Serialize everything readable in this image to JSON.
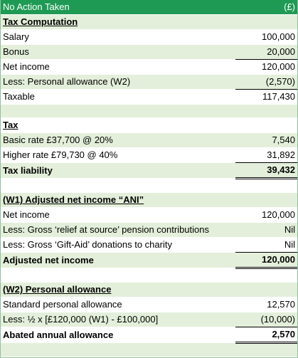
{
  "header": {
    "title": "No Action Taken",
    "unit": "(£)"
  },
  "tax_computation": {
    "heading": "Tax Computation",
    "rows": [
      {
        "label": "Salary",
        "value": "100,000"
      },
      {
        "label": "Bonus",
        "value": "20,000"
      },
      {
        "label": "Net income",
        "value": "120,000"
      },
      {
        "label": "Less: Personal allowance (W2)",
        "value": "(2,570)"
      },
      {
        "label": "Taxable",
        "value": "117,430"
      }
    ]
  },
  "tax": {
    "heading": "Tax",
    "rows": [
      {
        "label": "Basic rate £37,700 @ 20%",
        "value": "7,540"
      },
      {
        "label": "Higher rate £79,730 @ 40%",
        "value": "31,892"
      }
    ],
    "total": {
      "label": "Tax liability",
      "value": "39,432"
    }
  },
  "w1": {
    "heading": "(W1) Adjusted net income “ANI”",
    "rows": [
      {
        "label": "Net income",
        "value": "120,000"
      },
      {
        "label": "Less: Gross ‘relief at source’ pension contributions",
        "value": "Nil"
      },
      {
        "label": "Less: Gross ‘Gift-Aid’ donations to charity",
        "value": "Nil"
      }
    ],
    "total": {
      "label": "Adjusted net income",
      "value": "120,000"
    }
  },
  "w2": {
    "heading": "(W2) Personal allowance",
    "rows": [
      {
        "label": "Standard personal allowance",
        "value": "12,570"
      },
      {
        "label": "Less: ½ x [£120,000 (W1) - £100,000]",
        "value": "(10,000)"
      }
    ],
    "total": {
      "label": "Abated annual allowance",
      "value": "2,570"
    }
  },
  "colors": {
    "header": "#1f9a55",
    "shade": "#e3efda"
  }
}
